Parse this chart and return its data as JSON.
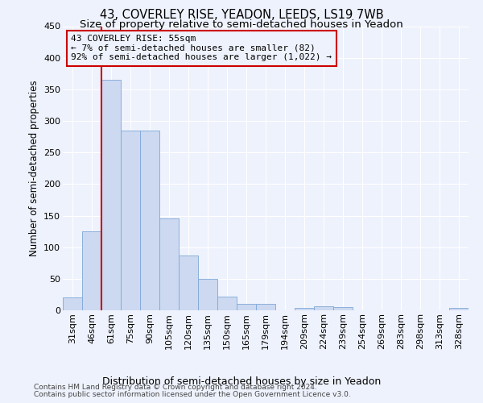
{
  "title": "43, COVERLEY RISE, YEADON, LEEDS, LS19 7WB",
  "subtitle": "Size of property relative to semi-detached houses in Yeadon",
  "xlabel": "Distribution of semi-detached houses by size in Yeadon",
  "ylabel": "Number of semi-detached properties",
  "footer_line1": "Contains HM Land Registry data © Crown copyright and database right 2024.",
  "footer_line2": "Contains public sector information licensed under the Open Government Licence v3.0.",
  "annotation_line1": "43 COVERLEY RISE: 55sqm",
  "annotation_line2": "← 7% of semi-detached houses are smaller (82)",
  "annotation_line3": "92% of semi-detached houses are larger (1,022) →",
  "bar_color": "#ccd9f0",
  "bar_edge_color": "#7ea8d8",
  "vline_color": "#cc0000",
  "annotation_box_color": "#cc0000",
  "categories": [
    "31sqm",
    "46sqm",
    "61sqm",
    "75sqm",
    "90sqm",
    "105sqm",
    "120sqm",
    "135sqm",
    "150sqm",
    "165sqm",
    "179sqm",
    "194sqm",
    "209sqm",
    "224sqm",
    "239sqm",
    "254sqm",
    "269sqm",
    "283sqm",
    "298sqm",
    "313sqm",
    "328sqm"
  ],
  "values": [
    20,
    125,
    365,
    285,
    285,
    145,
    87,
    50,
    22,
    10,
    10,
    0,
    4,
    6,
    5,
    0,
    0,
    0,
    0,
    0,
    4
  ],
  "ylim": [
    0,
    450
  ],
  "yticks": [
    0,
    50,
    100,
    150,
    200,
    250,
    300,
    350,
    400,
    450
  ],
  "background_color": "#eef2fc",
  "grid_color": "#ffffff",
  "title_fontsize": 10.5,
  "subtitle_fontsize": 9.5,
  "axis_label_fontsize": 9,
  "ylabel_fontsize": 8.5,
  "tick_fontsize": 8,
  "footer_fontsize": 6.5,
  "annotation_fontsize": 8,
  "vline_x_index": 2
}
